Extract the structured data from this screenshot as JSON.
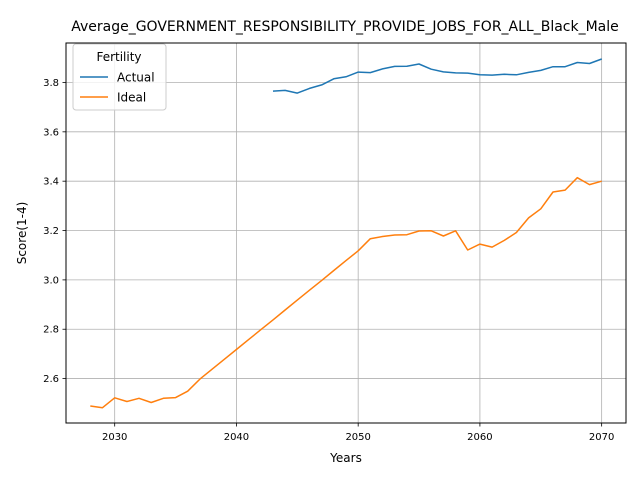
{
  "chart_data": {
    "type": "line",
    "title": "Average_GOVERNMENT_RESPONSIBILITY_PROVIDE_JOBS_FOR_ALL_Black_Male",
    "xlabel": "Years",
    "ylabel": "Score(1-4)",
    "xlim": [
      2026,
      2072
    ],
    "ylim": [
      2.42,
      3.96
    ],
    "xticks": [
      2030,
      2040,
      2050,
      2060,
      2070
    ],
    "yticks": [
      2.6,
      2.8,
      3.0,
      3.2,
      3.4,
      3.6,
      3.8
    ],
    "grid": true,
    "legend": {
      "title": "Fertility",
      "position": "top-left"
    },
    "series": [
      {
        "name": "Actual",
        "color": "#1f77b4",
        "x": [
          2043,
          2044,
          2045,
          2046,
          2047,
          2048,
          2049,
          2050,
          2051,
          2052,
          2053,
          2054,
          2055,
          2056,
          2057,
          2058,
          2059,
          2060,
          2061,
          2062,
          2063,
          2064,
          2065,
          2066,
          2067,
          2068,
          2069,
          2070
        ],
        "y": [
          3.765,
          3.768,
          3.757,
          3.776,
          3.79,
          3.815,
          3.823,
          3.842,
          3.84,
          3.855,
          3.865,
          3.866,
          3.875,
          3.854,
          3.843,
          3.839,
          3.838,
          3.831,
          3.83,
          3.833,
          3.831,
          3.841,
          3.849,
          3.864,
          3.864,
          3.881,
          3.877,
          3.895
        ]
      },
      {
        "name": "Ideal",
        "color": "#ff7f0e",
        "x": [
          2028,
          2029,
          2030,
          2031,
          2032,
          2033,
          2034,
          2035,
          2036,
          2037,
          2038,
          2039,
          2040,
          2041,
          2042,
          2043,
          2044,
          2045,
          2046,
          2047,
          2048,
          2049,
          2050,
          2051,
          2052,
          2053,
          2054,
          2055,
          2056,
          2057,
          2058,
          2059,
          2060,
          2061,
          2062,
          2063,
          2064,
          2065,
          2066,
          2067,
          2068,
          2069,
          2070
        ],
        "y": [
          2.489,
          2.482,
          2.522,
          2.507,
          2.52,
          2.503,
          2.52,
          2.523,
          2.549,
          2.598,
          2.638,
          2.678,
          2.718,
          2.758,
          2.798,
          2.838,
          2.878,
          2.918,
          2.958,
          2.998,
          3.038,
          3.078,
          3.118,
          3.167,
          3.176,
          3.182,
          3.183,
          3.198,
          3.199,
          3.178,
          3.199,
          3.121,
          3.145,
          3.133,
          3.16,
          3.192,
          3.251,
          3.288,
          3.356,
          3.364,
          3.414,
          3.386,
          3.4
        ]
      }
    ]
  }
}
